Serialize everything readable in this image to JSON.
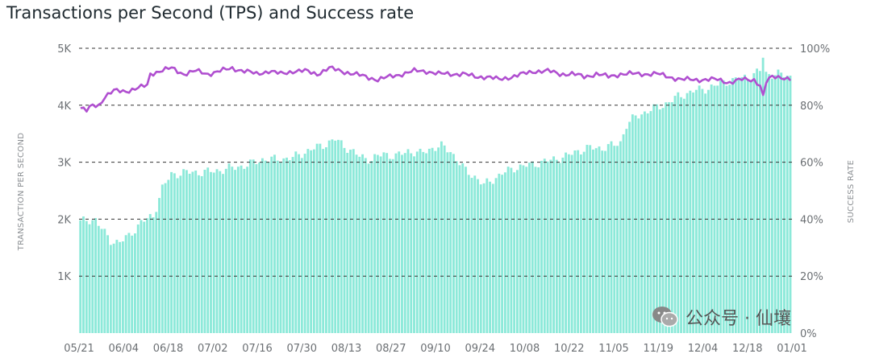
{
  "title": "Transactions per Second (TPS) and Success rate",
  "watermark": {
    "text": "公众号 · 仙壤",
    "icon": "wechat-icon"
  },
  "chart_data": {
    "type": "bar",
    "title": "Transactions per Second (TPS) and Success rate",
    "xlabel": "",
    "ylabel": "TRANSACTION PER SECOND",
    "ylabel_right": "SUCCESS RATE",
    "x_tick_labels": [
      "05/21",
      "06/04",
      "06/18",
      "07/02",
      "07/16",
      "07/30",
      "08/13",
      "08/27",
      "09/10",
      "09/24",
      "10/08",
      "10/22",
      "11/05",
      "11/19",
      "12/04",
      "12/18",
      "01/01"
    ],
    "left_ticks": [
      "5K",
      "4K",
      "3K",
      "2K",
      "1K"
    ],
    "right_ticks": [
      "100%",
      "80%",
      "60%",
      "40%",
      "20%",
      "0%"
    ],
    "ylim": [
      0,
      5000
    ],
    "ylim_right": [
      0,
      100
    ],
    "grid": true,
    "colors": {
      "bars": "#8ce9d9",
      "line": "#b04fd0",
      "grid": "#333333"
    },
    "tps_keypoints": [
      {
        "x": 0,
        "y": 1950
      },
      {
        "x": 5,
        "y": 2000
      },
      {
        "x": 8,
        "y": 1750
      },
      {
        "x": 10,
        "y": 1620
      },
      {
        "x": 13,
        "y": 1600
      },
      {
        "x": 16,
        "y": 1700
      },
      {
        "x": 20,
        "y": 1950
      },
      {
        "x": 24,
        "y": 2050
      },
      {
        "x": 27,
        "y": 2550
      },
      {
        "x": 30,
        "y": 2780
      },
      {
        "x": 34,
        "y": 2820
      },
      {
        "x": 38,
        "y": 2820
      },
      {
        "x": 44,
        "y": 2840
      },
      {
        "x": 50,
        "y": 2900
      },
      {
        "x": 55,
        "y": 2950
      },
      {
        "x": 60,
        "y": 3050
      },
      {
        "x": 65,
        "y": 3050
      },
      {
        "x": 70,
        "y": 3080
      },
      {
        "x": 75,
        "y": 3200
      },
      {
        "x": 80,
        "y": 3300
      },
      {
        "x": 84,
        "y": 3400
      },
      {
        "x": 88,
        "y": 3250
      },
      {
        "x": 92,
        "y": 3100
      },
      {
        "x": 96,
        "y": 3050
      },
      {
        "x": 100,
        "y": 3150
      },
      {
        "x": 104,
        "y": 3100
      },
      {
        "x": 108,
        "y": 3200
      },
      {
        "x": 112,
        "y": 3150
      },
      {
        "x": 116,
        "y": 3250
      },
      {
        "x": 119,
        "y": 3280
      },
      {
        "x": 122,
        "y": 3200
      },
      {
        "x": 124,
        "y": 3050
      },
      {
        "x": 127,
        "y": 2850
      },
      {
        "x": 130,
        "y": 2750
      },
      {
        "x": 133,
        "y": 2600
      },
      {
        "x": 136,
        "y": 2700
      },
      {
        "x": 139,
        "y": 2800
      },
      {
        "x": 143,
        "y": 2900
      },
      {
        "x": 148,
        "y": 2950
      },
      {
        "x": 152,
        "y": 3000
      },
      {
        "x": 156,
        "y": 3050
      },
      {
        "x": 160,
        "y": 3100
      },
      {
        "x": 164,
        "y": 3200
      },
      {
        "x": 168,
        "y": 3250
      },
      {
        "x": 172,
        "y": 3250
      },
      {
        "x": 176,
        "y": 3300
      },
      {
        "x": 178,
        "y": 3350
      },
      {
        "x": 180,
        "y": 3650
      },
      {
        "x": 183,
        "y": 3800
      },
      {
        "x": 187,
        "y": 3900
      },
      {
        "x": 192,
        "y": 4000
      },
      {
        "x": 197,
        "y": 4150
      },
      {
        "x": 202,
        "y": 4250
      },
      {
        "x": 207,
        "y": 4300
      },
      {
        "x": 212,
        "y": 4400
      },
      {
        "x": 216,
        "y": 4450
      },
      {
        "x": 220,
        "y": 4500
      },
      {
        "x": 224,
        "y": 4600
      },
      {
        "x": 225,
        "y": 4850
      },
      {
        "x": 226,
        "y": 4550
      },
      {
        "x": 230,
        "y": 4550
      },
      {
        "x": 234,
        "y": 4500
      }
    ],
    "success_rate_keypoints": [
      {
        "x": 0,
        "y": 79
      },
      {
        "x": 2,
        "y": 78
      },
      {
        "x": 4,
        "y": 80
      },
      {
        "x": 6,
        "y": 80
      },
      {
        "x": 8,
        "y": 83
      },
      {
        "x": 11,
        "y": 85
      },
      {
        "x": 15,
        "y": 85
      },
      {
        "x": 19,
        "y": 86
      },
      {
        "x": 22,
        "y": 87
      },
      {
        "x": 23,
        "y": 91
      },
      {
        "x": 26,
        "y": 92
      },
      {
        "x": 30,
        "y": 93
      },
      {
        "x": 34,
        "y": 91
      },
      {
        "x": 38,
        "y": 92
      },
      {
        "x": 42,
        "y": 91
      },
      {
        "x": 46,
        "y": 92
      },
      {
        "x": 50,
        "y": 93
      },
      {
        "x": 54,
        "y": 92
      },
      {
        "x": 58,
        "y": 91
      },
      {
        "x": 62,
        "y": 92
      },
      {
        "x": 66,
        "y": 91
      },
      {
        "x": 70,
        "y": 92
      },
      {
        "x": 74,
        "y": 92
      },
      {
        "x": 78,
        "y": 91
      },
      {
        "x": 82,
        "y": 93
      },
      {
        "x": 86,
        "y": 92
      },
      {
        "x": 90,
        "y": 91
      },
      {
        "x": 94,
        "y": 90
      },
      {
        "x": 98,
        "y": 89
      },
      {
        "x": 102,
        "y": 90
      },
      {
        "x": 106,
        "y": 91
      },
      {
        "x": 110,
        "y": 92
      },
      {
        "x": 114,
        "y": 92
      },
      {
        "x": 118,
        "y": 91
      },
      {
        "x": 122,
        "y": 91
      },
      {
        "x": 126,
        "y": 91
      },
      {
        "x": 130,
        "y": 90
      },
      {
        "x": 134,
        "y": 90
      },
      {
        "x": 138,
        "y": 89
      },
      {
        "x": 142,
        "y": 90
      },
      {
        "x": 146,
        "y": 91
      },
      {
        "x": 150,
        "y": 92
      },
      {
        "x": 154,
        "y": 92
      },
      {
        "x": 158,
        "y": 91
      },
      {
        "x": 162,
        "y": 91
      },
      {
        "x": 166,
        "y": 90
      },
      {
        "x": 170,
        "y": 91
      },
      {
        "x": 174,
        "y": 90
      },
      {
        "x": 178,
        "y": 91
      },
      {
        "x": 182,
        "y": 91
      },
      {
        "x": 186,
        "y": 91
      },
      {
        "x": 190,
        "y": 91
      },
      {
        "x": 194,
        "y": 90
      },
      {
        "x": 198,
        "y": 89
      },
      {
        "x": 202,
        "y": 89
      },
      {
        "x": 206,
        "y": 89
      },
      {
        "x": 210,
        "y": 89
      },
      {
        "x": 214,
        "y": 88
      },
      {
        "x": 218,
        "y": 89
      },
      {
        "x": 222,
        "y": 89
      },
      {
        "x": 224,
        "y": 87
      },
      {
        "x": 225,
        "y": 83
      },
      {
        "x": 226,
        "y": 88
      },
      {
        "x": 228,
        "y": 90
      },
      {
        "x": 231,
        "y": 90
      },
      {
        "x": 234,
        "y": 89
      }
    ],
    "bar_count": 235
  }
}
